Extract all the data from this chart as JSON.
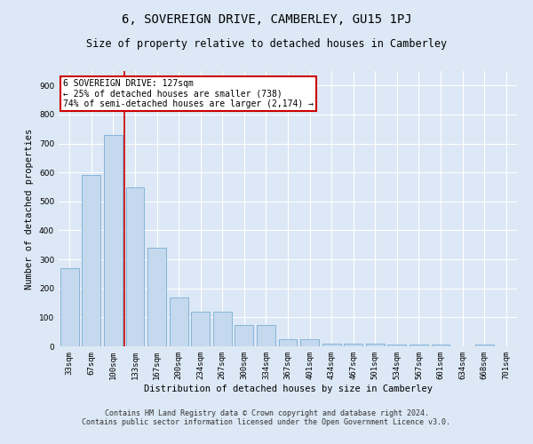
{
  "title": "6, SOVEREIGN DRIVE, CAMBERLEY, GU15 1PJ",
  "subtitle": "Size of property relative to detached houses in Camberley",
  "xlabel": "Distribution of detached houses by size in Camberley",
  "ylabel": "Number of detached properties",
  "categories": [
    "33sqm",
    "67sqm",
    "100sqm",
    "133sqm",
    "167sqm",
    "200sqm",
    "234sqm",
    "267sqm",
    "300sqm",
    "334sqm",
    "367sqm",
    "401sqm",
    "434sqm",
    "467sqm",
    "501sqm",
    "534sqm",
    "567sqm",
    "601sqm",
    "634sqm",
    "668sqm",
    "701sqm"
  ],
  "values": [
    270,
    590,
    730,
    550,
    340,
    170,
    120,
    120,
    75,
    75,
    25,
    25,
    10,
    10,
    10,
    5,
    5,
    5,
    0,
    5,
    0
  ],
  "bar_color": "#c5d9ee",
  "bar_edgecolor": "#7aadd4",
  "background_color": "#dce8f5",
  "plot_bg_color": "#dce8f5",
  "grid_color": "#ffffff",
  "vline_color": "#cc0000",
  "vline_x_index": 2.5,
  "annotation_text": "6 SOVEREIGN DRIVE: 127sqm\n← 25% of detached houses are smaller (738)\n74% of semi-detached houses are larger (2,174) →",
  "annotation_box_edgecolor": "#cc0000",
  "annotation_box_facecolor": "#ffffff",
  "ylim": [
    0,
    950
  ],
  "yticks": [
    0,
    100,
    200,
    300,
    400,
    500,
    600,
    700,
    800,
    900
  ],
  "footer_line1": "Contains HM Land Registry data © Crown copyright and database right 2024.",
  "footer_line2": "Contains public sector information licensed under the Open Government Licence v3.0.",
  "title_fontsize": 10,
  "subtitle_fontsize": 8.5,
  "label_fontsize": 7.5,
  "tick_fontsize": 6.5,
  "annotation_fontsize": 7,
  "footer_fontsize": 6
}
